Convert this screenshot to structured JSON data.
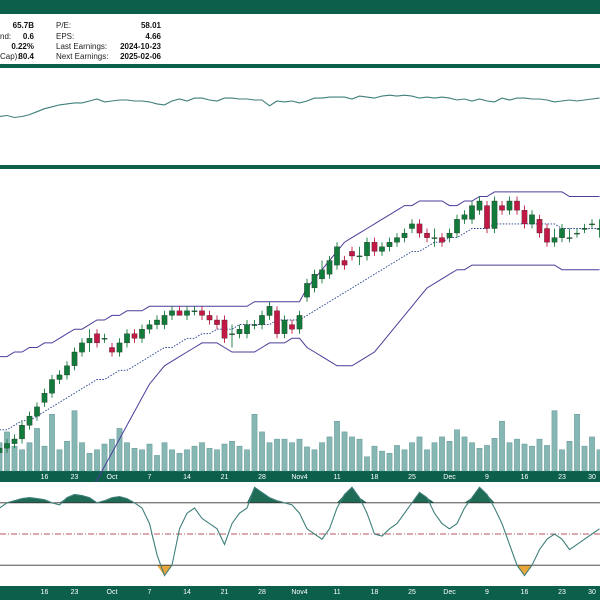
{
  "colors": {
    "frame": "#0c5f4a",
    "up_candle": "#127a3a",
    "down_candle": "#c21845",
    "volume": "#86b7b4",
    "volume_edge": "#4f8d89",
    "rsi_line": "#3f7f7a",
    "bollinger": "#4c3d99",
    "sma": "#1c3a8c",
    "stoch_line": "#3f7f7a",
    "stoch_high_fill": "#1f6b56",
    "stoch_low_fill": "#e8a53a",
    "midline": "#a02030"
  },
  "stats": {
    "left": [
      {
        "label": "",
        "value": "65.7B"
      },
      {
        "label": "nd:",
        "value": "0.6"
      },
      {
        "label": "",
        "value": "0.22%"
      },
      {
        "label": "Cap):",
        "value": "80.4"
      }
    ],
    "right": [
      {
        "label": "P/E:",
        "value": "58.01"
      },
      {
        "label": "EPS:",
        "value": "4.66"
      },
      {
        "label": "Last Earnings:",
        "value": "2024-10-23"
      },
      {
        "label": "Next Earnings:",
        "value": "2025-02-06"
      }
    ]
  },
  "x_ticks": [
    {
      "day": 7,
      "label": "16"
    },
    {
      "day": 11,
      "label": "23"
    },
    {
      "day": 16,
      "label": "Oct"
    },
    {
      "day": 21,
      "label": "7"
    },
    {
      "day": 26,
      "label": "14"
    },
    {
      "day": 31,
      "label": "21"
    },
    {
      "day": 36,
      "label": "28"
    },
    {
      "day": 41,
      "label": "Nov4"
    },
    {
      "day": 46,
      "label": "11"
    },
    {
      "day": 51,
      "label": "18"
    },
    {
      "day": 56,
      "label": "25"
    },
    {
      "day": 61,
      "label": "Dec"
    },
    {
      "day": 66,
      "label": "9"
    },
    {
      "day": 71,
      "label": "16"
    },
    {
      "day": 76,
      "label": "23"
    },
    {
      "day": 80,
      "label": "30"
    }
  ],
  "chart_data": [
    {
      "type": "line",
      "panel": "rsi",
      "x": [
        1,
        2,
        3,
        4,
        5,
        6,
        7,
        8,
        9,
        10,
        11,
        12,
        13,
        14,
        15,
        16,
        17,
        18,
        19,
        20,
        21,
        22,
        23,
        24,
        25,
        26,
        27,
        28,
        29,
        30,
        31,
        32,
        33,
        34,
        35,
        36,
        37,
        38,
        39,
        40,
        41,
        42,
        43,
        44,
        45,
        46,
        47,
        48,
        49,
        50,
        51,
        52,
        53,
        54,
        55,
        56,
        57,
        58,
        59,
        60,
        61,
        62,
        63,
        64,
        65,
        66,
        67,
        68,
        69,
        70,
        71,
        72,
        73,
        74,
        75,
        76,
        77,
        78,
        79,
        80,
        81
      ],
      "values": [
        50,
        51,
        49,
        50,
        52,
        55,
        58,
        60,
        62,
        63,
        64,
        64,
        66,
        68,
        65,
        66,
        67,
        67,
        66,
        66,
        65,
        63,
        62,
        66,
        68,
        66,
        69,
        69,
        67,
        66,
        69,
        69,
        68,
        68,
        67,
        67,
        61,
        66,
        65,
        66,
        64,
        66,
        69,
        69,
        70,
        70,
        70,
        68,
        71,
        70,
        69,
        71,
        72,
        71,
        72,
        71,
        69,
        70,
        69,
        70,
        69,
        67,
        68,
        66,
        68,
        66,
        65,
        69,
        67,
        69,
        69,
        68,
        68,
        67,
        65,
        66,
        67,
        66,
        67,
        68,
        69
      ],
      "ylim": [
        0,
        100
      ]
    },
    {
      "type": "candlestick",
      "panel": "price",
      "x": [
        1,
        2,
        3,
        4,
        5,
        6,
        7,
        8,
        9,
        10,
        11,
        12,
        13,
        14,
        15,
        16,
        17,
        18,
        19,
        20,
        21,
        22,
        23,
        24,
        25,
        26,
        27,
        28,
        29,
        30,
        31,
        32,
        33,
        34,
        35,
        36,
        37,
        38,
        39,
        40,
        41,
        42,
        43,
        44,
        45,
        46,
        47,
        48,
        49,
        50,
        51,
        52,
        53,
        54,
        55,
        56,
        57,
        58,
        59,
        60,
        61,
        62,
        63,
        64,
        65,
        66,
        67,
        68,
        69,
        70,
        71,
        72,
        73,
        74,
        75,
        76,
        77,
        78,
        79,
        80,
        81
      ],
      "open": [
        150,
        151,
        152,
        153,
        156,
        158,
        161,
        163,
        166,
        167,
        169,
        172,
        174,
        176,
        175,
        173,
        172,
        174,
        176,
        175,
        177,
        178,
        178,
        180,
        181,
        180,
        181,
        181,
        180,
        179,
        179,
        176,
        176,
        176,
        178,
        178,
        180,
        181,
        176,
        178,
        177,
        184,
        186,
        188,
        189,
        191,
        192,
        194,
        193,
        193,
        196,
        194,
        195,
        196,
        197,
        199,
        200,
        198,
        197,
        197,
        197,
        198,
        201,
        201,
        203,
        204,
        199,
        204,
        203,
        205,
        203,
        200,
        201,
        199,
        196,
        197,
        197,
        198,
        199,
        200,
        199
      ],
      "close": [
        151,
        152,
        153,
        156,
        158,
        160,
        163,
        166,
        167,
        169,
        172,
        174,
        175,
        174,
        175,
        172,
        174,
        176,
        175,
        177,
        178,
        179,
        180,
        181,
        180,
        181,
        181,
        180,
        179,
        178,
        175,
        176,
        177,
        178,
        178,
        180,
        182,
        176,
        179,
        177,
        180,
        187,
        189,
        190,
        192,
        195,
        191,
        193,
        193,
        196,
        194,
        195,
        196,
        197,
        198,
        200,
        198,
        197,
        197,
        196,
        198,
        201,
        202,
        204,
        205,
        199,
        205,
        203,
        205,
        203,
        200,
        202,
        198,
        196,
        197,
        199,
        197,
        198,
        199,
        200,
        199
      ],
      "high": [
        152,
        153,
        154,
        157,
        159,
        161,
        164,
        167,
        168,
        170,
        173,
        175,
        177,
        177,
        176,
        174,
        175,
        177,
        177,
        178,
        179,
        180,
        181,
        182,
        182,
        182,
        182,
        182,
        181,
        180,
        180,
        178,
        178,
        179,
        179,
        181,
        183,
        182,
        180,
        179,
        181,
        188,
        190,
        192,
        193,
        196,
        193,
        195,
        195,
        197,
        197,
        196,
        197,
        198,
        199,
        201,
        201,
        199,
        199,
        198,
        199,
        202,
        203,
        205,
        206,
        205,
        206,
        205,
        206,
        206,
        204,
        203,
        202,
        200,
        199,
        200,
        199,
        199,
        200,
        201,
        201
      ],
      "low": [
        149,
        150,
        151,
        152,
        155,
        157,
        160,
        162,
        165,
        166,
        168,
        171,
        172,
        173,
        174,
        171,
        171,
        173,
        174,
        174,
        176,
        177,
        177,
        179,
        180,
        179,
        180,
        179,
        178,
        177,
        174,
        173,
        175,
        175,
        177,
        177,
        179,
        175,
        175,
        176,
        176,
        183,
        185,
        187,
        188,
        190,
        190,
        192,
        191,
        192,
        193,
        193,
        194,
        195,
        196,
        198,
        197,
        196,
        195,
        195,
        196,
        197,
        200,
        200,
        202,
        198,
        198,
        202,
        202,
        202,
        199,
        199,
        197,
        195,
        195,
        196,
        196,
        197,
        198,
        199,
        197
      ],
      "bollinger_upper": [
        171,
        171,
        172,
        172,
        173,
        173,
        174,
        174,
        175,
        176,
        177,
        177,
        178,
        179,
        179,
        180,
        180,
        181,
        181,
        181,
        182,
        182,
        182,
        182,
        182,
        182,
        182,
        182,
        182,
        182,
        182,
        182,
        182,
        182,
        183,
        183,
        183,
        183,
        183,
        183,
        183,
        186,
        188,
        190,
        192,
        194,
        196,
        197,
        198,
        199,
        200,
        201,
        202,
        203,
        204,
        204,
        205,
        205,
        205,
        205,
        204,
        204,
        205,
        205,
        206,
        206,
        207,
        207,
        207,
        207,
        207,
        207,
        207,
        207,
        207,
        207,
        206,
        206,
        206,
        206,
        206
      ],
      "bollinger_lower": [
        140,
        139,
        138,
        138,
        138,
        138,
        138,
        137,
        137,
        138,
        139,
        140,
        142,
        144,
        147,
        150,
        153,
        156,
        159,
        162,
        165,
        167,
        169,
        170,
        171,
        172,
        173,
        174,
        174,
        174,
        173,
        172,
        172,
        172,
        172,
        173,
        174,
        174,
        174,
        175,
        175,
        173,
        172,
        171,
        170,
        169,
        169,
        169,
        170,
        171,
        172,
        174,
        176,
        178,
        180,
        182,
        184,
        186,
        187,
        188,
        189,
        190,
        190,
        191,
        191,
        191,
        191,
        191,
        191,
        191,
        191,
        191,
        191,
        191,
        191,
        190,
        190,
        190,
        190,
        190,
        190
      ],
      "sma": [
        155,
        155,
        156,
        157,
        157,
        158,
        159,
        160,
        161,
        162,
        163,
        164,
        165,
        166,
        166,
        167,
        168,
        168,
        169,
        170,
        171,
        172,
        173,
        173,
        174,
        175,
        175,
        176,
        176,
        177,
        177,
        177,
        178,
        178,
        178,
        178,
        178,
        179,
        179,
        179,
        179,
        180,
        181,
        182,
        183,
        184,
        185,
        186,
        187,
        188,
        189,
        190,
        191,
        192,
        193,
        194,
        194,
        195,
        196,
        196,
        197,
        197,
        198,
        199,
        199,
        199,
        200,
        200,
        200,
        200,
        200,
        200,
        200,
        200,
        200,
        199,
        199,
        199,
        199,
        199,
        199
      ],
      "ylim": [
        146,
        212
      ]
    },
    {
      "type": "bar",
      "panel": "volume",
      "x": [
        1,
        2,
        3,
        4,
        5,
        6,
        7,
        8,
        9,
        10,
        11,
        12,
        13,
        14,
        15,
        16,
        17,
        18,
        19,
        20,
        21,
        22,
        23,
        24,
        25,
        26,
        27,
        28,
        29,
        30,
        31,
        32,
        33,
        34,
        35,
        36,
        37,
        38,
        39,
        40,
        41,
        42,
        43,
        44,
        45,
        46,
        47,
        48,
        49,
        50,
        51,
        52,
        53,
        54,
        55,
        56,
        57,
        58,
        59,
        60,
        61,
        62,
        63,
        64,
        65,
        66,
        67,
        68,
        69,
        70,
        71,
        72,
        73,
        74,
        75,
        76,
        77,
        78,
        79,
        80,
        81
      ],
      "values": [
        40,
        55,
        35,
        30,
        40,
        60,
        35,
        80,
        30,
        42,
        85,
        40,
        25,
        30,
        38,
        45,
        60,
        40,
        32,
        30,
        38,
        22,
        40,
        30,
        25,
        30,
        35,
        40,
        32,
        30,
        38,
        42,
        35,
        30,
        80,
        55,
        40,
        45,
        45,
        40,
        45,
        34,
        30,
        40,
        48,
        70,
        55,
        48,
        45,
        20,
        35,
        28,
        25,
        36,
        30,
        40,
        48,
        30,
        40,
        48,
        42,
        58,
        48,
        40,
        32,
        36,
        46,
        70,
        40,
        45,
        38,
        35,
        45,
        36,
        85,
        30,
        42,
        80,
        35,
        48,
        30
      ],
      "ylim": [
        0,
        100
      ]
    },
    {
      "type": "line",
      "panel": "stochastic",
      "x": [
        1,
        2,
        3,
        4,
        5,
        6,
        7,
        8,
        9,
        10,
        11,
        12,
        13,
        14,
        15,
        16,
        17,
        18,
        19,
        20,
        21,
        22,
        23,
        24,
        25,
        26,
        27,
        28,
        29,
        30,
        31,
        32,
        33,
        34,
        35,
        36,
        37,
        38,
        39,
        40,
        41,
        42,
        43,
        44,
        45,
        46,
        47,
        48,
        49,
        50,
        51,
        52,
        53,
        54,
        55,
        56,
        57,
        58,
        59,
        60,
        61,
        62,
        63,
        64,
        65,
        66,
        67,
        68,
        69,
        70,
        71,
        72,
        73,
        74,
        75,
        76,
        77,
        78,
        79,
        80,
        81
      ],
      "values": [
        75,
        80,
        82,
        84,
        85,
        84,
        83,
        80,
        78,
        85,
        88,
        87,
        85,
        80,
        82,
        85,
        86,
        84,
        80,
        75,
        60,
        30,
        10,
        20,
        55,
        70,
        75,
        65,
        60,
        55,
        40,
        60,
        70,
        75,
        95,
        90,
        85,
        82,
        80,
        78,
        70,
        55,
        50,
        45,
        55,
        75,
        88,
        95,
        85,
        70,
        50,
        48,
        55,
        60,
        70,
        80,
        90,
        85,
        70,
        60,
        55,
        60,
        75,
        85,
        95,
        88,
        75,
        60,
        40,
        20,
        10,
        20,
        35,
        45,
        50,
        45,
        35,
        40,
        45,
        50,
        55
      ],
      "upper_band": 80,
      "lower_band": 20,
      "midline": 50,
      "ylim": [
        0,
        100
      ]
    }
  ]
}
